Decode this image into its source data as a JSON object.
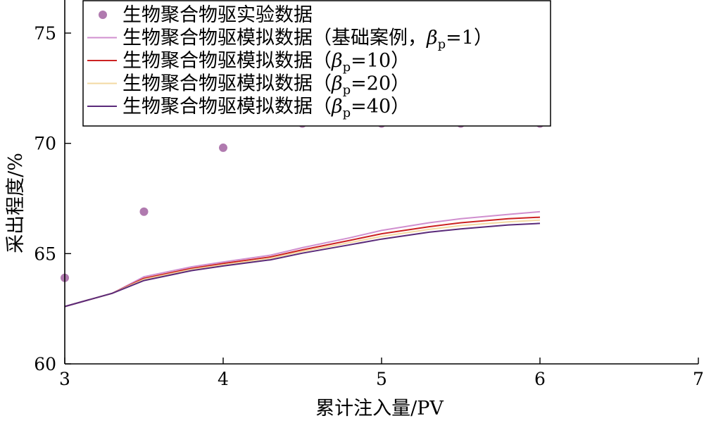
{
  "chart_data": {
    "type": "line",
    "title": "",
    "xlabel": "累计注入量/PV",
    "ylabel": "采出程度/%",
    "xlim": [
      3,
      7
    ],
    "ylim": [
      60,
      76.5
    ],
    "xticks": [
      3,
      4,
      5,
      6,
      7
    ],
    "yticks": [
      60,
      65,
      70,
      75
    ],
    "grid": false,
    "legend_position": "top-left",
    "scatter": {
      "name": "生物聚合物驱实验数据",
      "color": "#b07aaf",
      "x": [
        3.0,
        3.5,
        4.0,
        4.5,
        5.0,
        5.5,
        6.0
      ],
      "y": [
        63.9,
        66.9,
        69.8,
        70.9,
        70.9,
        70.9,
        70.9
      ]
    },
    "series": [
      {
        "name": "生物聚合物驱模拟数据（基础案例，",
        "beta_sub": "p",
        "beta_tail": "=1）",
        "color": "#d08fcf",
        "x": [
          3.0,
          3.3,
          3.5,
          3.8,
          4.0,
          4.3,
          4.5,
          4.8,
          5.0,
          5.3,
          5.5,
          5.8,
          6.0
        ],
        "y": [
          62.6,
          63.2,
          63.95,
          64.4,
          64.62,
          64.93,
          65.27,
          65.72,
          66.05,
          66.4,
          66.58,
          66.78,
          66.9
        ]
      },
      {
        "name": "生物聚合物驱模拟数据（",
        "beta_sub": "p",
        "beta_tail": "=10）",
        "color": "#cc2222",
        "x": [
          3.0,
          3.3,
          3.5,
          3.8,
          4.0,
          4.3,
          4.5,
          4.8,
          5.0,
          5.3,
          5.5,
          5.8,
          6.0
        ],
        "y": [
          62.6,
          63.2,
          63.88,
          64.33,
          64.55,
          64.85,
          65.17,
          65.6,
          65.9,
          66.22,
          66.4,
          66.58,
          66.65
        ]
      },
      {
        "name": "生物聚合物驱模拟数据（",
        "beta_sub": "p",
        "beta_tail": "=20）",
        "color": "#f3d9a2",
        "x": [
          3.0,
          3.3,
          3.5,
          3.8,
          4.0,
          4.3,
          4.5,
          4.8,
          5.0,
          5.3,
          5.5,
          5.8,
          6.0
        ],
        "y": [
          62.6,
          63.2,
          63.83,
          64.28,
          64.49,
          64.79,
          65.1,
          65.5,
          65.78,
          66.1,
          66.27,
          66.44,
          66.52
        ]
      },
      {
        "name": "生物聚合物驱模拟数据（",
        "beta_sub": "p",
        "beta_tail": "=40）",
        "color": "#5a2a7a",
        "x": [
          3.0,
          3.3,
          3.5,
          3.8,
          4.0,
          4.3,
          4.5,
          4.8,
          5.0,
          5.3,
          5.5,
          5.8,
          6.0
        ],
        "y": [
          62.6,
          63.2,
          63.78,
          64.23,
          64.44,
          64.72,
          65.02,
          65.4,
          65.66,
          65.97,
          66.12,
          66.3,
          66.37
        ]
      }
    ]
  }
}
